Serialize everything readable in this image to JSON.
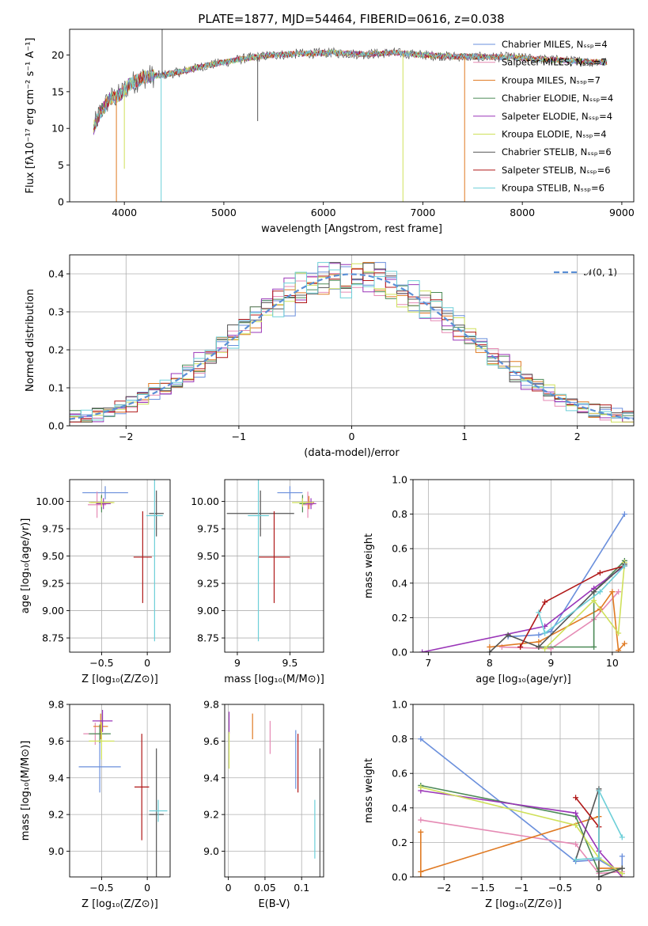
{
  "figure": {
    "title": "PLATE=1877, MJD=54464, FIBERID=0616, z=0.038"
  },
  "model_colors": {
    "Chabrier MILES": "#6a8fdc",
    "Salpeter MILES": "#e58ab4",
    "Kroupa MILES": "#e07a23",
    "Chabrier ELODIE": "#4c8a57",
    "Salpeter ELODIE": "#9a35b8",
    "Kroupa ELODIE": "#cfe05a",
    "Chabrier STELIB": "#555555",
    "Salpeter STELIB": "#b01818",
    "Kroupa STELIB": "#6dcfd8"
  },
  "chart_data": [
    {
      "id": "spectrum",
      "type": "line",
      "xlabel": "wavelength [Angstrom, rest frame]",
      "ylabel": "Flux [fλ10⁻¹⁷ erg cm⁻² s⁻¹ A⁻¹]",
      "xlim": [
        3450,
        9120
      ],
      "ylim": [
        0,
        23.5
      ],
      "xticks": [
        4000,
        5000,
        6000,
        7000,
        8000,
        9000
      ],
      "yticks": [
        0,
        5,
        10,
        15,
        20
      ],
      "grid": false,
      "legend_position": "upper right",
      "legend": [
        "Chabrier MILES, N_SSP=4",
        "Salpeter MILES, N_SSP=7",
        "Kroupa MILES, N_SSP=7",
        "Chabrier ELODIE, N_SSP=4",
        "Salpeter ELODIE, N_SSP=4",
        "Kroupa ELODIE, N_SSP=4",
        "Chabrier STELIB, N_SSP=6",
        "Salpeter STELIB, N_SSP=6",
        "Kroupa STELIB, N_SSP=6"
      ],
      "continuum": {
        "x": [
          3690,
          3750,
          3850,
          3950,
          4050,
          4200,
          4400,
          4600,
          4800,
          5000,
          5200,
          5500,
          5800,
          6100,
          6400,
          6700,
          7000,
          7300,
          7600,
          7900,
          8200,
          8500,
          8800
        ],
        "y": [
          10.0,
          12.0,
          14.0,
          14.5,
          16.0,
          17.0,
          17.3,
          17.8,
          18.5,
          19.0,
          19.5,
          20.0,
          20.2,
          20.3,
          20.1,
          20.3,
          20.0,
          19.8,
          19.7,
          19.7,
          19.4,
          19.2,
          19.0
        ]
      },
      "features": [
        {
          "model": "Kroupa MILES",
          "x": 7420,
          "drop_to": 0
        },
        {
          "model": "Kroupa ELODIE",
          "x": 6800,
          "drop_to": 0
        },
        {
          "model": "Kroupa MILES",
          "x": 3920,
          "drop_to": 0
        },
        {
          "model": "Kroupa STELIB",
          "x": 4370,
          "drop_to": 0
        },
        {
          "model": "Kroupa ELODIE",
          "x": 4000,
          "drop_to": 4.5
        },
        {
          "model": "Chabrier STELIB",
          "x": 5340,
          "drop_to": 11.0
        },
        {
          "model": "Chabrier STELIB",
          "x": 4380,
          "drop_to": 23.5
        }
      ]
    },
    {
      "id": "residuals",
      "type": "histogram",
      "xlabel": "(data-model)/error",
      "ylabel": "Normed distribution",
      "xlim": [
        -2.5,
        2.5
      ],
      "ylim": [
        0,
        0.45
      ],
      "xticks": [
        -2,
        -1,
        0,
        1,
        2
      ],
      "yticks": [
        0.0,
        0.1,
        0.2,
        0.3,
        0.4
      ],
      "grid": true,
      "legend_position": "upper right",
      "legend": [
        "𝒩(0, 1)"
      ],
      "reference_curve": {
        "name": "𝒩(0, 1)",
        "mean": 0,
        "sigma": 1,
        "style": "dashed"
      },
      "bin_edges_start": -2.5,
      "bin_width": 0.1,
      "bins": 50,
      "shape": "uniform-like between -2.5 and 2.5 with approx peak 0.35-0.43 near 0"
    },
    {
      "id": "age-vs-Z",
      "type": "scatter",
      "xlabel": "Z [log₁₀(Z/Z⊙)]",
      "ylabel": "age  [log₁₀(age/yr)]",
      "xlim": [
        -0.85,
        0.25
      ],
      "ylim": [
        8.62,
        10.2
      ],
      "xticks": [
        -0.5,
        0.0
      ],
      "yticks": [
        8.75,
        9.0,
        9.25,
        9.5,
        9.75,
        10.0
      ],
      "grid": true,
      "points": [
        {
          "model": "Chabrier MILES",
          "x": -0.46,
          "y": 10.08,
          "xerr": 0.25,
          "yerr": 0.06
        },
        {
          "model": "Salpeter MILES",
          "x": -0.55,
          "y": 9.97,
          "xerr": 0.1,
          "yerr": 0.12
        },
        {
          "model": "Kroupa MILES",
          "x": -0.5,
          "y": 9.99,
          "xerr": 0.12,
          "yerr": 0.06
        },
        {
          "model": "Chabrier ELODIE",
          "x": -0.5,
          "y": 9.98,
          "xerr": 0.05,
          "yerr": 0.08
        },
        {
          "model": "Salpeter ELODIE",
          "x": -0.48,
          "y": 9.98,
          "xerr": 0.08,
          "yerr": 0.05
        },
        {
          "model": "Kroupa ELODIE",
          "x": -0.5,
          "y": 9.99,
          "xerr": 0.14,
          "yerr": 0.04
        },
        {
          "model": "Chabrier STELIB",
          "x": 0.1,
          "y": 9.89,
          "xerr": 0.08,
          "yerr": 0.21
        },
        {
          "model": "Salpeter STELIB",
          "x": -0.05,
          "y": 9.49,
          "xerr": 0.1,
          "yerr": 0.42
        },
        {
          "model": "Kroupa STELIB",
          "x": 0.08,
          "y": 9.87,
          "xerr": 0.09,
          "yerr": 1.15
        }
      ]
    },
    {
      "id": "age-vs-mass",
      "type": "scatter",
      "xlabel": "mass [log₁₀(M/M⊙)]",
      "ylabel": "",
      "xlim": [
        8.88,
        9.82
      ],
      "ylim": [
        8.62,
        10.2
      ],
      "xticks": [
        9.0,
        9.5
      ],
      "yticks": [
        8.75,
        9.0,
        9.25,
        9.5,
        9.75,
        10.0
      ],
      "grid": true,
      "points": [
        {
          "model": "Chabrier MILES",
          "x": 9.5,
          "y": 10.08,
          "xerr": 0.12,
          "yerr": 0.06
        },
        {
          "model": "Salpeter MILES",
          "x": 9.67,
          "y": 9.97,
          "xerr": 0.05,
          "yerr": 0.12
        },
        {
          "model": "Kroupa MILES",
          "x": 9.68,
          "y": 9.99,
          "xerr": 0.05,
          "yerr": 0.06
        },
        {
          "model": "Chabrier ELODIE",
          "x": 9.62,
          "y": 9.98,
          "xerr": 0.03,
          "yerr": 0.08
        },
        {
          "model": "Salpeter ELODIE",
          "x": 9.7,
          "y": 9.98,
          "xerr": 0.05,
          "yerr": 0.05
        },
        {
          "model": "Kroupa ELODIE",
          "x": 9.62,
          "y": 9.99,
          "xerr": 0.1,
          "yerr": 0.04
        },
        {
          "model": "Chabrier STELIB",
          "x": 9.22,
          "y": 9.89,
          "xerr": 0.32,
          "yerr": 0.21
        },
        {
          "model": "Salpeter STELIB",
          "x": 9.35,
          "y": 9.49,
          "xerr": 0.15,
          "yerr": 0.42
        },
        {
          "model": "Kroupa STELIB",
          "x": 9.2,
          "y": 9.87,
          "xerr": 0.1,
          "yerr": 1.15
        }
      ]
    },
    {
      "id": "weight-vs-age",
      "type": "line",
      "xlabel": "age  [log₁₀(age/yr)]",
      "ylabel": "mass weight",
      "xlim": [
        6.75,
        10.35
      ],
      "ylim": [
        0,
        1.0
      ],
      "xticks": [
        7,
        8,
        9,
        10
      ],
      "yticks": [
        0.0,
        0.2,
        0.4,
        0.6,
        0.8,
        1.0
      ],
      "grid": true,
      "series": [
        {
          "model": "Chabrier MILES",
          "x": [
            8.3,
            8.8,
            9.0,
            10.2
          ],
          "y": [
            0.09,
            0.1,
            0.12,
            0.8
          ]
        },
        {
          "model": "Salpeter MILES",
          "x": [
            8.2,
            9.0,
            9.7,
            10.1
          ],
          "y": [
            0.03,
            0.02,
            0.19,
            0.35
          ]
        },
        {
          "model": "Kroupa MILES",
          "x": [
            8.0,
            8.8,
            9.8,
            10.0,
            10.1,
            10.2
          ],
          "y": [
            0.03,
            0.06,
            0.25,
            0.35,
            0.01,
            0.05
          ]
        },
        {
          "model": "Chabrier ELODIE",
          "x": [
            8.8,
            9.7,
            9.7,
            10.2
          ],
          "y": [
            0.03,
            0.03,
            0.35,
            0.53
          ]
        },
        {
          "model": "Salpeter ELODIE",
          "x": [
            6.9,
            8.9,
            9.7,
            10.2
          ],
          "y": [
            0.0,
            0.15,
            0.37,
            0.5
          ]
        },
        {
          "model": "Kroupa ELODIE",
          "x": [
            8.9,
            9.7,
            10.1,
            10.2
          ],
          "y": [
            0.02,
            0.3,
            0.11,
            0.52
          ]
        },
        {
          "model": "Chabrier STELIB",
          "x": [
            8.0,
            8.3,
            8.8,
            9.7,
            10.2
          ],
          "y": [
            0.0,
            0.1,
            0.03,
            0.35,
            0.51
          ]
        },
        {
          "model": "Salpeter STELIB",
          "x": [
            8.5,
            8.9,
            9.8,
            10.2
          ],
          "y": [
            0.03,
            0.29,
            0.46,
            0.5
          ]
        },
        {
          "model": "Kroupa STELIB",
          "x": [
            8.8,
            8.9,
            9.8,
            10.2
          ],
          "y": [
            0.23,
            0.11,
            0.35,
            0.5
          ]
        }
      ]
    },
    {
      "id": "mass-vs-Z",
      "type": "scatter",
      "xlabel": "Z [log₁₀(Z/Z⊙)]",
      "ylabel": "mass [log₁₀(M/M⊙)]",
      "xlim": [
        -0.85,
        0.25
      ],
      "ylim": [
        8.86,
        9.8
      ],
      "xticks": [
        -0.5,
        0.0
      ],
      "yticks": [
        9.0,
        9.2,
        9.4,
        9.6,
        9.8
      ],
      "grid": true,
      "points": [
        {
          "model": "Chabrier MILES",
          "x": -0.52,
          "y": 9.46,
          "xerr": 0.23,
          "yerr": 0.14
        },
        {
          "model": "Salpeter MILES",
          "x": -0.57,
          "y": 9.64,
          "xerr": 0.13,
          "yerr": 0.06
        },
        {
          "model": "Kroupa MILES",
          "x": -0.51,
          "y": 9.68,
          "xerr": 0.08,
          "yerr": 0.07
        },
        {
          "model": "Chabrier ELODIE",
          "x": -0.52,
          "y": 9.64,
          "xerr": 0.12,
          "yerr": 0.05
        },
        {
          "model": "Salpeter ELODIE",
          "x": -0.49,
          "y": 9.71,
          "xerr": 0.11,
          "yerr": 0.06
        },
        {
          "model": "Kroupa ELODIE",
          "x": -0.5,
          "y": 9.6,
          "xerr": 0.14,
          "yerr": 0.1
        },
        {
          "model": "Chabrier STELIB",
          "x": 0.1,
          "y": 9.2,
          "xerr": 0.08,
          "yerr": 0.36
        },
        {
          "model": "Salpeter STELIB",
          "x": -0.06,
          "y": 9.35,
          "xerr": 0.08,
          "yerr": 0.29
        },
        {
          "model": "Kroupa STELIB",
          "x": 0.12,
          "y": 9.22,
          "xerr": 0.1,
          "yerr": 0.06
        }
      ]
    },
    {
      "id": "mass-vs-EBV",
      "type": "scatter",
      "xlabel": "E(B-V)",
      "ylabel": "",
      "xlim": [
        -0.005,
        0.13
      ],
      "ylim": [
        8.86,
        9.8
      ],
      "xticks": [
        0.0,
        0.05,
        0.1
      ],
      "yticks": [
        9.0,
        9.2,
        9.4,
        9.6,
        9.8
      ],
      "grid": true,
      "points": [
        {
          "model": "Chabrier MILES",
          "x": 0.092,
          "y": 9.5,
          "yerr": 0.16
        },
        {
          "model": "Salpeter MILES",
          "x": 0.057,
          "y": 9.62,
          "yerr": 0.09
        },
        {
          "model": "Kroupa MILES",
          "x": 0.033,
          "y": 9.68,
          "yerr": 0.07
        },
        {
          "model": "Salpeter ELODIE",
          "x": 0.001,
          "y": 9.7,
          "yerr": 0.06
        },
        {
          "model": "Kroupa ELODIE",
          "x": 0.001,
          "y": 9.55,
          "yerr": 0.1
        },
        {
          "model": "Chabrier STELIB",
          "x": 0.125,
          "y": 9.2,
          "yerr": 0.36
        },
        {
          "model": "Salpeter STELIB",
          "x": 0.095,
          "y": 9.48,
          "yerr": 0.16
        },
        {
          "model": "Kroupa STELIB",
          "x": 0.118,
          "y": 9.12,
          "yerr": 0.16
        }
      ]
    },
    {
      "id": "weight-vs-Z",
      "type": "line",
      "xlabel": "Z [log₁₀(Z/Z⊙)]",
      "ylabel": "mass weight",
      "xlim": [
        -2.4,
        0.45
      ],
      "ylim": [
        0,
        1.0
      ],
      "xticks": [
        -2.0,
        -1.5,
        -1.0,
        -0.5,
        0.0
      ],
      "yticks": [
        0.0,
        0.2,
        0.4,
        0.6,
        0.8,
        1.0
      ],
      "grid": true,
      "series": [
        {
          "model": "Chabrier MILES",
          "x": [
            -2.3,
            -0.3,
            0.0,
            0.3,
            0.3
          ],
          "y": [
            0.8,
            0.09,
            0.1,
            0.02,
            0.12
          ]
        },
        {
          "model": "Salpeter MILES",
          "x": [
            -2.3,
            -0.3,
            0.0,
            0.3
          ],
          "y": [
            0.33,
            0.19,
            0.02,
            0.03
          ]
        },
        {
          "model": "Kroupa MILES",
          "x": [
            -2.3,
            -2.3,
            -2.3,
            0.0,
            0.0,
            0.3
          ],
          "y": [
            0.26,
            0.0,
            0.03,
            0.35,
            0.05,
            0.05
          ]
        },
        {
          "model": "Chabrier ELODIE",
          "x": [
            -2.3,
            -0.3,
            0.0,
            0.3
          ],
          "y": [
            0.53,
            0.35,
            0.03,
            0.05
          ]
        },
        {
          "model": "Salpeter ELODIE",
          "x": [
            -2.3,
            -0.3,
            0.0,
            0.3
          ],
          "y": [
            0.5,
            0.37,
            0.15,
            0.0
          ]
        },
        {
          "model": "Kroupa ELODIE",
          "x": [
            -2.3,
            -0.3,
            0.0,
            0.3
          ],
          "y": [
            0.52,
            0.3,
            0.11,
            0.02
          ]
        },
        {
          "model": "Chabrier STELIB",
          "x": [
            -0.3,
            0.0,
            0.0,
            0.3
          ],
          "y": [
            0.1,
            0.51,
            0.0,
            0.05
          ]
        },
        {
          "model": "Salpeter STELIB",
          "x": [
            -0.3,
            0.0,
            0.0
          ],
          "y": [
            0.46,
            0.29,
            0.5
          ]
        },
        {
          "model": "Kroupa STELIB",
          "x": [
            -0.3,
            0.0,
            0.0,
            0.3
          ],
          "y": [
            0.1,
            0.11,
            0.5,
            0.23
          ]
        }
      ]
    }
  ]
}
